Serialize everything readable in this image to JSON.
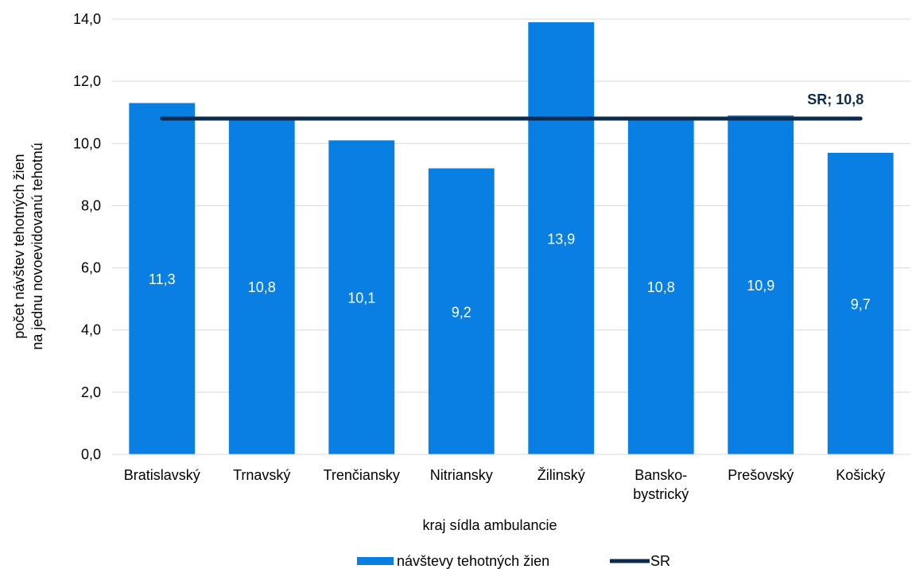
{
  "chart_data": {
    "type": "bar",
    "categories": [
      [
        "Bratislavský"
      ],
      [
        "Trnavský"
      ],
      [
        "Trenčiansky"
      ],
      [
        "Nitriansky"
      ],
      [
        "Žilinský"
      ],
      [
        "Bansko-",
        "bystrický"
      ],
      [
        "Prešovský"
      ],
      [
        "Košický"
      ]
    ],
    "series": [
      {
        "name": "návštevy tehotných žien",
        "values": [
          11.3,
          10.8,
          10.1,
          9.2,
          13.9,
          10.8,
          10.9,
          9.7
        ],
        "value_labels": [
          "11,3",
          "10,8",
          "10,1",
          "9,2",
          "13,9",
          "10,8",
          "10,9",
          "9,7"
        ],
        "color": "#0a7fe3"
      }
    ],
    "reference_line": {
      "name": "SR",
      "value": 10.8,
      "label": "SR; 10,8",
      "color": "#0d2b4e"
    },
    "ylim": [
      0,
      14
    ],
    "yticks": [
      0,
      2,
      4,
      6,
      8,
      10,
      12,
      14
    ],
    "ytick_labels": [
      "0,0",
      "2,0",
      "4,0",
      "6,0",
      "8,0",
      "10,0",
      "12,0",
      "14,0"
    ],
    "ylabel_lines": [
      "počet návštev tehotných žien",
      "na jednu novoevidovanú tehotnú"
    ],
    "xlabel": "kraj sídla ambulancie",
    "grid": true,
    "gridline_color": "#d9d9d9",
    "legend_position": "bottom"
  }
}
